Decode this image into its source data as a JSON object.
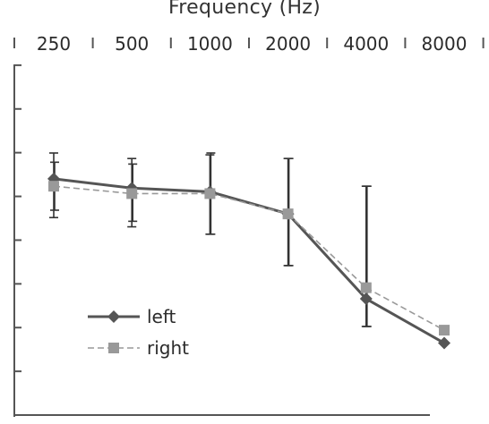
{
  "chart_data": {
    "type": "line",
    "xlabel": "Frequency (Hz)",
    "x_axis_position": "top",
    "categories": [
      "250",
      "500",
      "1000",
      "2000",
      "4000",
      "8000"
    ],
    "ylim": [
      0,
      9.5
    ],
    "y_tick_count": 9,
    "grid": false,
    "legend_position": "bottom-left",
    "series": [
      {
        "name": "left",
        "color": "#555555",
        "line_style": "solid",
        "marker": "diamond",
        "values": [
          6.4,
          6.15,
          6.05,
          5.45,
          3.15,
          1.95
        ],
        "error_low": [
          5.35,
          5.1,
          4.9,
          4.05,
          2.4
        ],
        "error_high": [
          7.1,
          6.95,
          7.05,
          6.95,
          6.2
        ]
      },
      {
        "name": "right",
        "color": "#999999",
        "line_style": "dashed",
        "marker": "square",
        "values": [
          6.2,
          6.0,
          6.0,
          5.45,
          3.45,
          2.3
        ],
        "error_low": [
          5.55,
          5.25,
          4.9,
          4.05,
          2.4
        ],
        "error_high": [
          6.85,
          6.8,
          7.1,
          6.95,
          6.2
        ]
      }
    ]
  }
}
